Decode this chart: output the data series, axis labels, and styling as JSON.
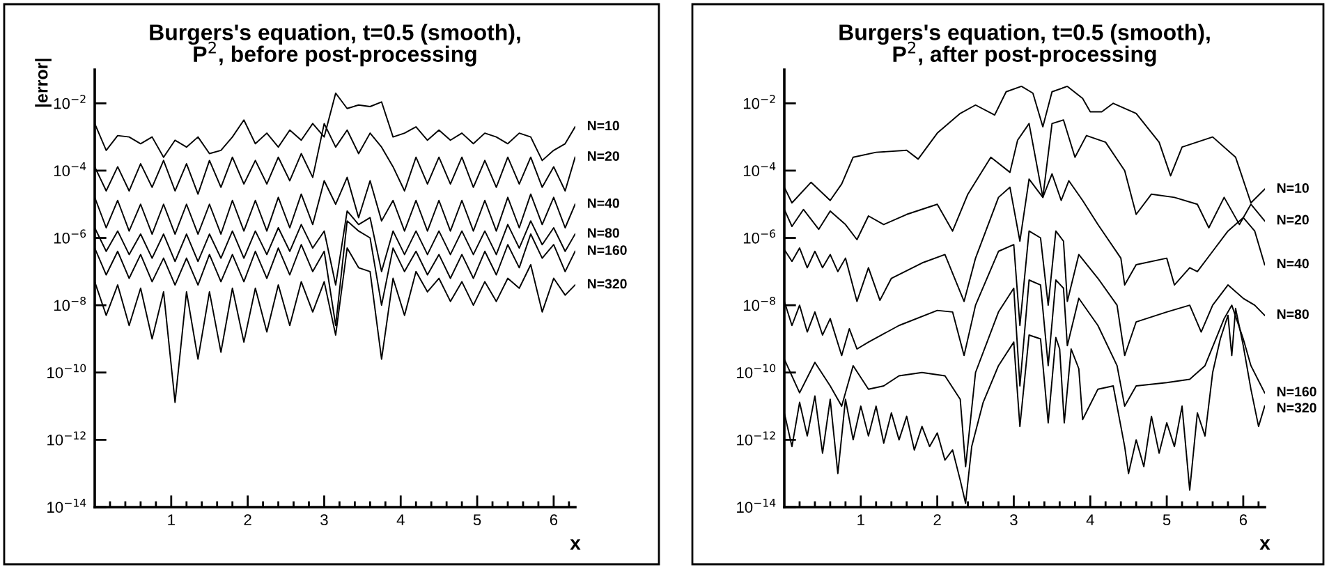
{
  "chart_data": [
    {
      "type": "line",
      "title": "Burgers's equation, t=0.5 (smooth),\nP$^{2}$, before post-processing",
      "xlabel": "x",
      "ylabel": "|error|",
      "log": "y",
      "xlim": [
        0,
        6.2832
      ],
      "ylim": [
        1e-14,
        0.1
      ],
      "xticks": [
        {
          "value": 0.2,
          "label": null
        },
        {
          "value": 0.4,
          "label": null
        },
        {
          "value": 0.6,
          "label": null
        },
        {
          "value": 0.8,
          "label": null
        },
        1,
        {
          "value": 1.2,
          "label": null
        },
        {
          "value": 1.4,
          "label": null
        },
        {
          "value": 1.6,
          "label": null
        },
        {
          "value": 1.8,
          "label": null
        },
        2,
        {
          "value": 2.2,
          "label": null
        },
        {
          "value": 2.4,
          "label": null
        },
        {
          "value": 2.6,
          "label": null
        },
        {
          "value": 2.8,
          "label": null
        },
        3,
        {
          "value": 3.2,
          "label": null
        },
        {
          "value": 3.4,
          "label": null
        },
        {
          "value": 3.6,
          "label": null
        },
        {
          "value": 3.8,
          "label": null
        },
        4,
        {
          "value": 4.2,
          "label": null
        },
        {
          "value": 4.4,
          "label": null
        },
        {
          "value": 4.6,
          "label": null
        },
        {
          "value": 4.8,
          "label": null
        },
        5,
        {
          "value": 5.2,
          "label": null
        },
        {
          "value": 5.4,
          "label": null
        },
        {
          "value": 5.6,
          "label": null
        },
        {
          "value": 5.8,
          "label": null
        },
        6,
        {
          "value": 6.2,
          "label": null
        }
      ],
      "yticks": [
        {
          "value": 1e-14,
          "label": "10$^{−14}$"
        },
        {
          "value": 1e-12,
          "label": "10$^{−12}$"
        },
        {
          "value": 1e-10,
          "label": "10$^{−10}$"
        },
        {
          "value": 1e-08,
          "label": "10$^{−8}$"
        },
        {
          "value": 1e-06,
          "label": "10$^{−6}$"
        },
        {
          "value": 0.0001,
          "label": "10$^{−4}$"
        },
        {
          "value": 0.01,
          "label": "10$^{−2}$"
        }
      ],
      "x": [
        0,
        0.15,
        0.3,
        0.45,
        0.6,
        0.75,
        0.9,
        1.05,
        1.2,
        1.35,
        1.5,
        1.65,
        1.8,
        1.95,
        2.1,
        2.25,
        2.4,
        2.55,
        2.7,
        2.85,
        3.0,
        3.15,
        3.3,
        3.45,
        3.6,
        3.75,
        3.9,
        4.05,
        4.2,
        4.35,
        4.5,
        4.65,
        4.8,
        4.95,
        5.1,
        5.25,
        5.4,
        5.55,
        5.7,
        5.85,
        6.0,
        6.15,
        6.28
      ],
      "series": [
        {
          "name": "N=10",
          "color": "#000000",
          "values": [
            0.0025,
            0.0004,
            0.0011,
            0.001,
            0.00063,
            0.001,
            0.00025,
            0.0008,
            0.0005,
            0.001,
            0.00032,
            0.0004,
            0.001,
            0.0032,
            0.00063,
            0.0013,
            0.0005,
            0.0016,
            0.0008,
            0.0025,
            0.001,
            0.02,
            0.007,
            0.0089,
            0.008,
            0.011,
            0.001,
            0.0013,
            0.002,
            0.0008,
            0.0016,
            0.0008,
            0.0013,
            0.00063,
            0.0013,
            0.001,
            0.00063,
            0.0013,
            0.001,
            0.0002,
            0.0004,
            0.00063,
            0.002
          ]
        },
        {
          "name": "N=20",
          "color": "#000000",
          "values": [
            0.00013,
            2.5e-05,
            0.00013,
            2.5e-05,
            0.00016,
            3.2e-05,
            0.0002,
            2.5e-05,
            0.00016,
            2e-05,
            0.0002,
            3.2e-05,
            0.00025,
            4e-05,
            0.0002,
            4e-05,
            0.00025,
            5e-05,
            0.00032,
            6.3e-05,
            0.0025,
            0.0005,
            0.0016,
            0.00032,
            0.0013,
            0.0005,
            0.00013,
            2.5e-05,
            0.00025,
            4e-05,
            0.00025,
            4e-05,
            0.00025,
            3.2e-05,
            0.0002,
            3.2e-05,
            0.00025,
            4e-05,
            0.00025,
            3.2e-05,
            0.00013,
            2.5e-05,
            0.00025
          ]
        },
        {
          "name": "N=40",
          "color": "#000000",
          "values": [
            1.6e-05,
            2e-06,
            1.3e-05,
            1.6e-06,
            1e-05,
            1.3e-06,
            1e-05,
            1.3e-06,
            1e-05,
            1.3e-06,
            1e-05,
            1.3e-06,
            1.3e-05,
            1.6e-06,
            1.3e-05,
            1.6e-06,
            1.6e-05,
            2e-06,
            2e-05,
            2.5e-06,
            5e-05,
            1e-05,
            6.3e-05,
            4e-06,
            5e-05,
            3.2e-06,
            1.3e-05,
            1.6e-06,
            1.3e-05,
            1.6e-06,
            1.3e-05,
            1.6e-06,
            1.3e-05,
            1.6e-06,
            1.3e-05,
            1.6e-06,
            1.6e-05,
            2e-06,
            2e-05,
            2.5e-06,
            1.6e-05,
            2e-06,
            1e-05
          ]
        },
        {
          "name": "N=80",
          "color": "#000000",
          "values": [
            2e-06,
            4e-07,
            1.6e-06,
            3.2e-07,
            1.3e-06,
            2.5e-07,
            1.3e-06,
            2e-07,
            1.3e-06,
            2e-07,
            1.3e-06,
            2.5e-07,
            1.6e-06,
            2.5e-07,
            1.6e-06,
            3.2e-07,
            2e-06,
            4e-07,
            2.5e-06,
            5e-07,
            1.6e-06,
            4e-08,
            6.3e-06,
            2.5e-06,
            4e-06,
            1e-07,
            1.6e-06,
            3.2e-07,
            1.6e-06,
            3.2e-07,
            1.6e-06,
            3.2e-07,
            1.6e-06,
            3.2e-07,
            1.6e-06,
            3.2e-07,
            2.5e-06,
            5e-07,
            3.2e-06,
            6.3e-07,
            2e-06,
            4e-07,
            1.3e-06
          ]
        },
        {
          "name": "N=160",
          "color": "#000000",
          "values": [
            5e-07,
            8e-08,
            4e-07,
            6.3e-08,
            3.2e-07,
            5e-08,
            2.5e-07,
            4e-08,
            2.5e-07,
            4e-08,
            3.2e-07,
            5e-08,
            3.2e-07,
            5e-08,
            4e-07,
            6.3e-08,
            5e-07,
            8e-08,
            6.3e-07,
            1e-07,
            4e-07,
            2.5e-09,
            3.2e-06,
            1.6e-06,
            1e-06,
            1e-08,
            5e-07,
            1e-07,
            4e-07,
            8e-08,
            3.2e-07,
            6.3e-08,
            3.2e-07,
            6.3e-08,
            4e-07,
            8e-08,
            6.3e-07,
            1.3e-07,
            1.3e-06,
            2.5e-07,
            6.3e-07,
            1e-07,
            4e-07
          ]
        },
        {
          "name": "N=320",
          "color": "#000000",
          "values": [
            5e-08,
            5e-09,
            4e-08,
            2.5e-09,
            3.2e-08,
            1e-09,
            2.5e-08,
            1.3e-11,
            2.5e-08,
            2.5e-10,
            2.5e-08,
            4e-10,
            3.2e-08,
            8e-10,
            3.2e-08,
            1.6e-09,
            4e-08,
            2.5e-09,
            5e-08,
            6.3e-09,
            5e-08,
            1.3e-09,
            5e-07,
            1.3e-07,
            1e-07,
            2.5e-10,
            6.3e-08,
            5e-09,
            1e-07,
            2.5e-08,
            6.3e-08,
            1.3e-08,
            5e-08,
            1e-08,
            5e-08,
            1.3e-08,
            6.3e-08,
            3.2e-08,
            1.6e-07,
            6.3e-09,
            6.3e-08,
            2e-08,
            4e-08
          ]
        }
      ]
    },
    {
      "type": "line",
      "title": "Burgers's equation, t=0.5 (smooth),\nP$^{2}$, after post-processing",
      "xlabel": "x",
      "log": "y",
      "xlim": [
        0,
        6.2832
      ],
      "ylim": [
        1e-14,
        0.1
      ],
      "xticks": [
        {
          "value": 0.2,
          "label": null
        },
        {
          "value": 0.4,
          "label": null
        },
        {
          "value": 0.6,
          "label": null
        },
        {
          "value": 0.8,
          "label": null
        },
        1,
        {
          "value": 1.2,
          "label": null
        },
        {
          "value": 1.4,
          "label": null
        },
        {
          "value": 1.6,
          "label": null
        },
        {
          "value": 1.8,
          "label": null
        },
        2,
        {
          "value": 2.2,
          "label": null
        },
        {
          "value": 2.4,
          "label": null
        },
        {
          "value": 2.6,
          "label": null
        },
        {
          "value": 2.8,
          "label": null
        },
        3,
        {
          "value": 3.2,
          "label": null
        },
        {
          "value": 3.4,
          "label": null
        },
        {
          "value": 3.6,
          "label": null
        },
        {
          "value": 3.8,
          "label": null
        },
        4,
        {
          "value": 4.2,
          "label": null
        },
        {
          "value": 4.4,
          "label": null
        },
        {
          "value": 4.6,
          "label": null
        },
        {
          "value": 4.8,
          "label": null
        },
        5,
        {
          "value": 5.2,
          "label": null
        },
        {
          "value": 5.4,
          "label": null
        },
        {
          "value": 5.6,
          "label": null
        },
        {
          "value": 5.8,
          "label": null
        },
        6,
        {
          "value": 6.2,
          "label": null
        }
      ],
      "yticks": [
        {
          "value": 1e-14,
          "label": "10$^{−14}$"
        },
        {
          "value": 1e-12,
          "label": "10$^{−12}$"
        },
        {
          "value": 1e-10,
          "label": "10$^{−10}$"
        },
        {
          "value": 1e-08,
          "label": "10$^{−8}$"
        },
        {
          "value": 1e-06,
          "label": "10$^{−6}$"
        },
        {
          "value": 0.0001,
          "label": "10$^{−4}$"
        },
        {
          "value": 0.01,
          "label": "10$^{−2}$"
        }
      ],
      "series": [
        {
          "name": "N=10",
          "color": "#000000",
          "x": [
            0,
            0.1,
            0.35,
            0.6,
            0.75,
            0.9,
            1.2,
            1.6,
            1.75,
            2.0,
            2.3,
            2.5,
            2.75,
            2.9,
            3.1,
            3.25,
            3.38,
            3.5,
            3.7,
            3.9,
            4.0,
            4.15,
            4.3,
            4.6,
            4.9,
            5.05,
            5.2,
            5.6,
            5.9,
            6.1,
            6.28
          ],
          "values": [
            3.2e-05,
            1.1e-05,
            4.5e-05,
            1.3e-05,
            4e-05,
            0.00025,
            0.00035,
            0.0004,
            0.00022,
            0.0013,
            0.005,
            0.0089,
            0.0045,
            0.022,
            0.032,
            0.02,
            0.002,
            0.022,
            0.032,
            0.014,
            0.0056,
            0.0056,
            0.01,
            0.005,
            0.0007,
            7e-05,
            0.0005,
            0.001,
            0.00025,
            1.1e-05,
            2.8e-05
          ]
        },
        {
          "name": "N=20",
          "color": "#000000",
          "x": [
            0,
            0.1,
            0.25,
            0.45,
            0.6,
            0.8,
            0.95,
            1.1,
            1.3,
            1.6,
            2.0,
            2.2,
            2.4,
            2.7,
            2.95,
            3.05,
            3.2,
            3.38,
            3.5,
            3.65,
            3.8,
            3.95,
            4.2,
            4.45,
            4.6,
            4.8,
            5.1,
            5.4,
            5.55,
            5.75,
            5.95,
            6.1,
            6.28
          ],
          "values": [
            7e-06,
            2.2e-06,
            7e-06,
            1.8e-06,
            6.3e-06,
            2.5e-06,
            8.9e-07,
            4.5e-06,
            2.5e-06,
            5e-06,
            1e-05,
            1.6e-06,
            2e-05,
            0.00025,
            8.9e-05,
            0.0008,
            0.0025,
            1.6e-05,
            0.0025,
            0.0032,
            0.00025,
            0.0011,
            0.0007,
            0.0001,
            5e-06,
            2e-05,
            1.6e-05,
            1e-05,
            2e-06,
            1.6e-05,
            2.5e-06,
            1e-05,
            3.2e-06
          ]
        },
        {
          "name": "N=40",
          "color": "#000000",
          "x": [
            0,
            0.1,
            0.2,
            0.3,
            0.4,
            0.5,
            0.6,
            0.7,
            0.8,
            0.95,
            1.1,
            1.25,
            1.4,
            1.8,
            2.1,
            2.35,
            2.5,
            2.8,
            2.95,
            3.08,
            3.2,
            3.38,
            3.5,
            3.62,
            3.72,
            3.9,
            4.1,
            4.4,
            4.45,
            4.6,
            5.0,
            5.1,
            5.3,
            5.4,
            5.6,
            5.8,
            6.0,
            6.15,
            6.28
          ],
          "values": [
            4.5e-07,
            2e-07,
            5e-07,
            1.3e-07,
            4e-07,
            1.3e-07,
            3.2e-07,
            1e-07,
            2.5e-07,
            1.3e-08,
            1.3e-07,
            1.4e-08,
            6.3e-08,
            1.8e-07,
            3.2e-07,
            1.3e-08,
            2.5e-07,
            1.6e-05,
            3.2e-05,
            8e-07,
            5.6e-05,
            1.6e-05,
            8e-05,
            1.3e-05,
            5e-05,
            1.3e-05,
            2.5e-06,
            2.5e-07,
            4e-08,
            1.6e-07,
            2.5e-07,
            4e-08,
            1.3e-07,
            1e-07,
            4e-07,
            1.6e-06,
            4e-06,
            1.6e-06,
            1.6e-07
          ]
        },
        {
          "name": "N=80",
          "color": "#000000",
          "x": [
            0,
            0.1,
            0.2,
            0.3,
            0.4,
            0.5,
            0.6,
            0.75,
            0.85,
            0.95,
            1.1,
            1.5,
            2.0,
            2.2,
            2.35,
            2.5,
            2.8,
            3.0,
            3.08,
            3.2,
            3.35,
            3.45,
            3.55,
            3.65,
            3.7,
            3.85,
            4.1,
            4.35,
            4.45,
            4.6,
            5.0,
            5.3,
            5.45,
            5.6,
            5.8,
            6.0,
            6.15,
            6.28
          ],
          "values": [
            1.3e-08,
            2.5e-09,
            1e-08,
            1.6e-09,
            6.3e-09,
            1.3e-09,
            4e-09,
            3.2e-10,
            2e-09,
            5e-10,
            8e-10,
            2.5e-09,
            7e-09,
            6.3e-09,
            3.2e-10,
            1e-08,
            4e-07,
            6.3e-07,
            2.5e-09,
            1.6e-06,
            1e-06,
            1e-08,
            1.6e-06,
            8e-07,
            1.3e-08,
            3.2e-07,
            6.3e-08,
            1e-08,
            3.2e-10,
            3.2e-09,
            6.3e-09,
            1e-08,
            1.6e-09,
            1e-08,
            4e-08,
            1.6e-08,
            1e-08,
            5e-09
          ]
        },
        {
          "name": "N=160",
          "color": "#000000",
          "x": [
            0,
            0.2,
            0.4,
            0.6,
            0.75,
            0.9,
            1.1,
            1.3,
            1.5,
            1.8,
            2.1,
            2.3,
            2.37,
            2.5,
            2.8,
            3.0,
            3.08,
            3.2,
            3.35,
            3.45,
            3.55,
            3.65,
            3.7,
            3.85,
            4.1,
            4.35,
            4.45,
            4.6,
            5.0,
            5.3,
            5.5,
            5.75,
            5.85,
            6.0,
            6.1,
            6.28
          ],
          "values": [
            2.5e-10,
            2.5e-11,
            2e-10,
            4e-11,
            1e-11,
            1.6e-10,
            3.2e-11,
            4e-11,
            8e-11,
            1e-10,
            8e-11,
            1.6e-11,
            1.6e-13,
            1e-10,
            6.3e-09,
            3.2e-08,
            4e-11,
            5.6e-08,
            4e-08,
            1.6e-10,
            5.6e-08,
            3.2e-08,
            6.3e-10,
            1.6e-08,
            2.5e-09,
            1.6e-10,
            1e-11,
            4e-11,
            5e-11,
            6.3e-11,
            1.6e-10,
            4e-09,
            1e-08,
            1e-09,
            1.6e-10,
            2.5e-11
          ]
        },
        {
          "name": "N=320",
          "color": "#000000",
          "x": [
            0,
            0.1,
            0.2,
            0.3,
            0.4,
            0.5,
            0.6,
            0.7,
            0.8,
            0.9,
            1.0,
            1.1,
            1.2,
            1.3,
            1.4,
            1.5,
            1.6,
            1.7,
            1.8,
            1.9,
            2.0,
            2.1,
            2.2,
            2.3,
            2.37,
            2.45,
            2.6,
            2.8,
            3.0,
            3.08,
            3.2,
            3.35,
            3.45,
            3.55,
            3.6,
            3.66,
            3.75,
            3.85,
            3.9,
            4.1,
            4.3,
            4.45,
            4.5,
            4.6,
            4.7,
            4.8,
            4.9,
            5.0,
            5.1,
            5.2,
            5.3,
            5.4,
            5.5,
            5.6,
            5.7,
            5.8,
            5.85,
            5.9,
            6.0,
            6.1,
            6.2,
            6.28
          ],
          "values": [
            6.3e-12,
            6.3e-13,
            1.3e-11,
            1.3e-12,
            2e-11,
            4e-13,
            1.6e-11,
            1e-13,
            1.6e-11,
            1e-12,
            1e-11,
            1.3e-12,
            1e-11,
            8e-13,
            6.3e-12,
            1e-12,
            5e-12,
            5e-13,
            2.5e-12,
            6.3e-13,
            1.6e-12,
            2.5e-13,
            5e-13,
            6.3e-14,
            1.3e-14,
            6.3e-13,
            1.3e-11,
            1.6e-10,
            8e-10,
            2.5e-12,
            1.3e-09,
            1e-09,
            3.2e-12,
            1.1e-09,
            5e-10,
            3.2e-12,
            5e-10,
            1.3e-10,
            4e-12,
            3.2e-11,
            4e-11,
            6.3e-13,
            1e-13,
            1e-12,
            1.6e-13,
            5e-12,
            4e-13,
            3.2e-12,
            6.3e-13,
            1e-11,
            3.2e-14,
            6.3e-12,
            1.3e-12,
            1e-10,
            1e-09,
            5e-09,
            3.2e-10,
            8e-09,
            6.3e-10,
            3.2e-11,
            2.5e-12,
            1e-11
          ]
        }
      ]
    }
  ]
}
